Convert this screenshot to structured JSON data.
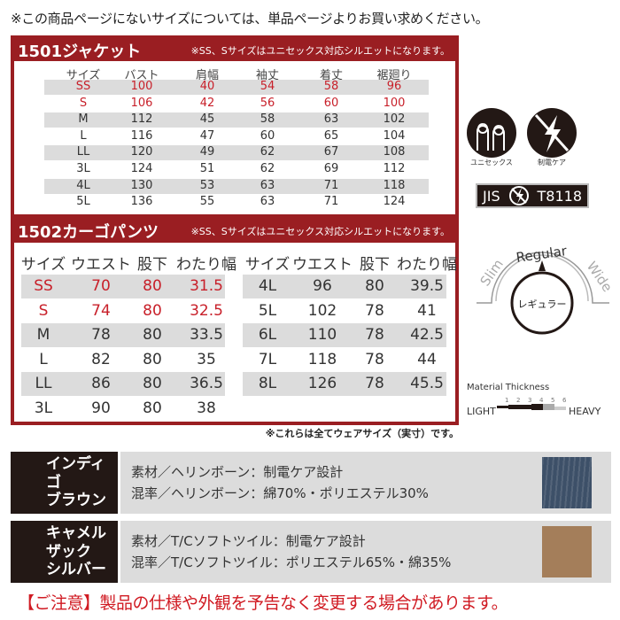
{
  "top_note": "※この商品ページにないサイズについては、単品ページよりお買い求めください。",
  "jacket": {
    "title": "1501ジャケット",
    "note": "※SS、Sサイズはユニセックス対応シルエットになります。",
    "headers": [
      "サイズ",
      "バスト",
      "肩幅",
      "袖丈",
      "着丈",
      "裾廻り"
    ],
    "rows": [
      [
        "SS",
        "100",
        "40",
        "54",
        "58",
        "96"
      ],
      [
        "S",
        "106",
        "42",
        "56",
        "60",
        "100"
      ],
      [
        "M",
        "112",
        "45",
        "58",
        "63",
        "102"
      ],
      [
        "L",
        "116",
        "47",
        "60",
        "65",
        "104"
      ],
      [
        "LL",
        "120",
        "49",
        "62",
        "67",
        "108"
      ],
      [
        "3L",
        "124",
        "51",
        "62",
        "69",
        "112"
      ],
      [
        "4L",
        "130",
        "53",
        "63",
        "71",
        "118"
      ],
      [
        "5L",
        "136",
        "55",
        "63",
        "71",
        "124"
      ]
    ]
  },
  "pants": {
    "title": "1502カーゴパンツ",
    "note": "※SS、Sサイズはユニセックス対応シルエットになります。",
    "headers": [
      "サイズ",
      "ウエスト",
      "股下",
      "わたり幅"
    ],
    "left_rows": [
      [
        "SS",
        "70",
        "80",
        "31.5"
      ],
      [
        "S",
        "74",
        "80",
        "32.5"
      ],
      [
        "M",
        "78",
        "80",
        "33.5"
      ],
      [
        "L",
        "82",
        "80",
        "35"
      ],
      [
        "LL",
        "86",
        "80",
        "36.5"
      ],
      [
        "3L",
        "90",
        "80",
        "38"
      ]
    ],
    "right_rows": [
      [
        "4L",
        "96",
        "80",
        "39.5"
      ],
      [
        "5L",
        "102",
        "78",
        "41"
      ],
      [
        "6L",
        "110",
        "78",
        "42.5"
      ],
      [
        "7L",
        "118",
        "78",
        "44"
      ],
      [
        "8L",
        "126",
        "78",
        "45.5"
      ]
    ]
  },
  "dim_note": "※これらは全てウェアサイズ（実寸）です。",
  "icons": {
    "unisex_label": "ユニセックス",
    "antistatic_label": "制電ケア",
    "jis_left": "JIS",
    "jis_right": "T8118"
  },
  "fit": {
    "slim": "Slim",
    "regular": "Regular",
    "wide": "Wide",
    "selected": "レギュラー"
  },
  "thickness": {
    "title": "Material Thickness",
    "light": "LIGHT",
    "heavy": "HEAVY",
    "ticks": [
      "1",
      "2",
      "3",
      "4",
      "5",
      "6"
    ],
    "level": 5,
    "max": 6
  },
  "products": [
    {
      "name_lines": [
        "インディゴ",
        "ブラウン"
      ],
      "material": "素材／ヘリンボーン：制電ケア設計",
      "blend": "混率／ヘリンボーン：綿70%・ポリエステル30%",
      "swatch_color": "#3d5068"
    },
    {
      "name_lines": [
        "キャメル",
        "ザック",
        "シルバー"
      ],
      "material": "素材／T/Cソフトツイル：制電ケア設計",
      "blend": "混率／T/Cソフトツイル：ポリエステル65%・綿35%",
      "swatch_color": "#a47e5a"
    }
  ],
  "notice": "【ご注意】製品の仕様や外観を予告なく変更する場合があります。",
  "colors": {
    "brand_red": "#9a1e22",
    "highlight_red": "#c8202a"
  }
}
